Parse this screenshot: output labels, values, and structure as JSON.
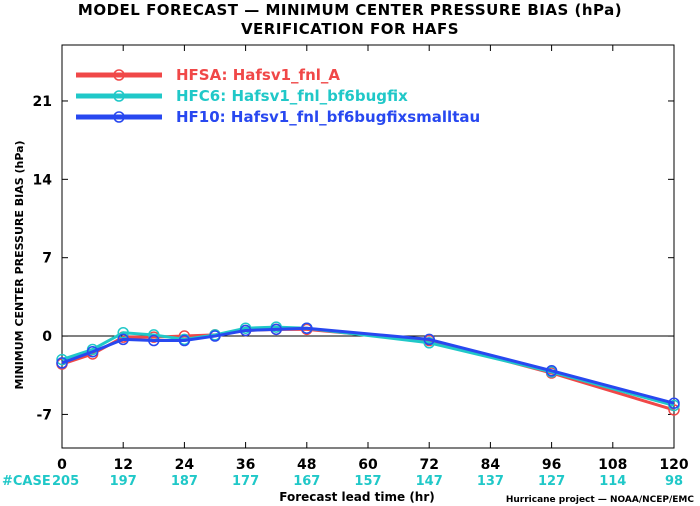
{
  "title": "MODEL FORECAST — MINIMUM CENTER PRESSURE BIAS (hPa)",
  "subtitle": "VERIFICATION FOR HAFS",
  "credit": "Hurricane project — NOAA/NCEP/EMC",
  "chart_data": {
    "type": "line",
    "xlabel": "Forecast lead time (hr)",
    "ylabel": "MINIMUM CENTER PRESSURE BIAS (hPa)",
    "xlim": [
      0,
      120
    ],
    "ylim": [
      -10,
      26
    ],
    "xticks": [
      0,
      12,
      24,
      36,
      48,
      60,
      72,
      84,
      96,
      108,
      120
    ],
    "yticks": [
      -7,
      0,
      7,
      14,
      21
    ],
    "zero_line": 0,
    "grid": false,
    "legend_position": "top-left",
    "case_label": "#CASE",
    "case_counts": [
      205,
      197,
      187,
      177,
      167,
      157,
      147,
      137,
      127,
      114,
      98
    ],
    "series": [
      {
        "name": "HFSA: Hafsv1_fnl_A",
        "color": "#f04848",
        "x": [
          0,
          6,
          12,
          18,
          24,
          30,
          36,
          42,
          48,
          72,
          96,
          120
        ],
        "y": [
          -2.5,
          -1.6,
          -0.1,
          -0.1,
          0.0,
          0.1,
          0.5,
          0.6,
          0.6,
          -0.4,
          -3.3,
          -6.6
        ]
      },
      {
        "name": "HFC6: Hafsv1_fnl_bf6bugfix",
        "color": "#20c8c8",
        "x": [
          0,
          6,
          12,
          18,
          24,
          30,
          36,
          42,
          48,
          72,
          96,
          120
        ],
        "y": [
          -2.1,
          -1.2,
          0.3,
          0.1,
          -0.3,
          0.1,
          0.7,
          0.8,
          0.7,
          -0.6,
          -3.2,
          -6.2
        ]
      },
      {
        "name": "HF10: Hafsv1_fnl_bf6bugfixsmalltau",
        "color": "#2848f0",
        "x": [
          0,
          6,
          12,
          18,
          24,
          30,
          36,
          42,
          48,
          72,
          96,
          120
        ],
        "y": [
          -2.4,
          -1.4,
          -0.3,
          -0.4,
          -0.4,
          0.0,
          0.5,
          0.6,
          0.7,
          -0.3,
          -3.1,
          -6.0
        ]
      }
    ]
  }
}
